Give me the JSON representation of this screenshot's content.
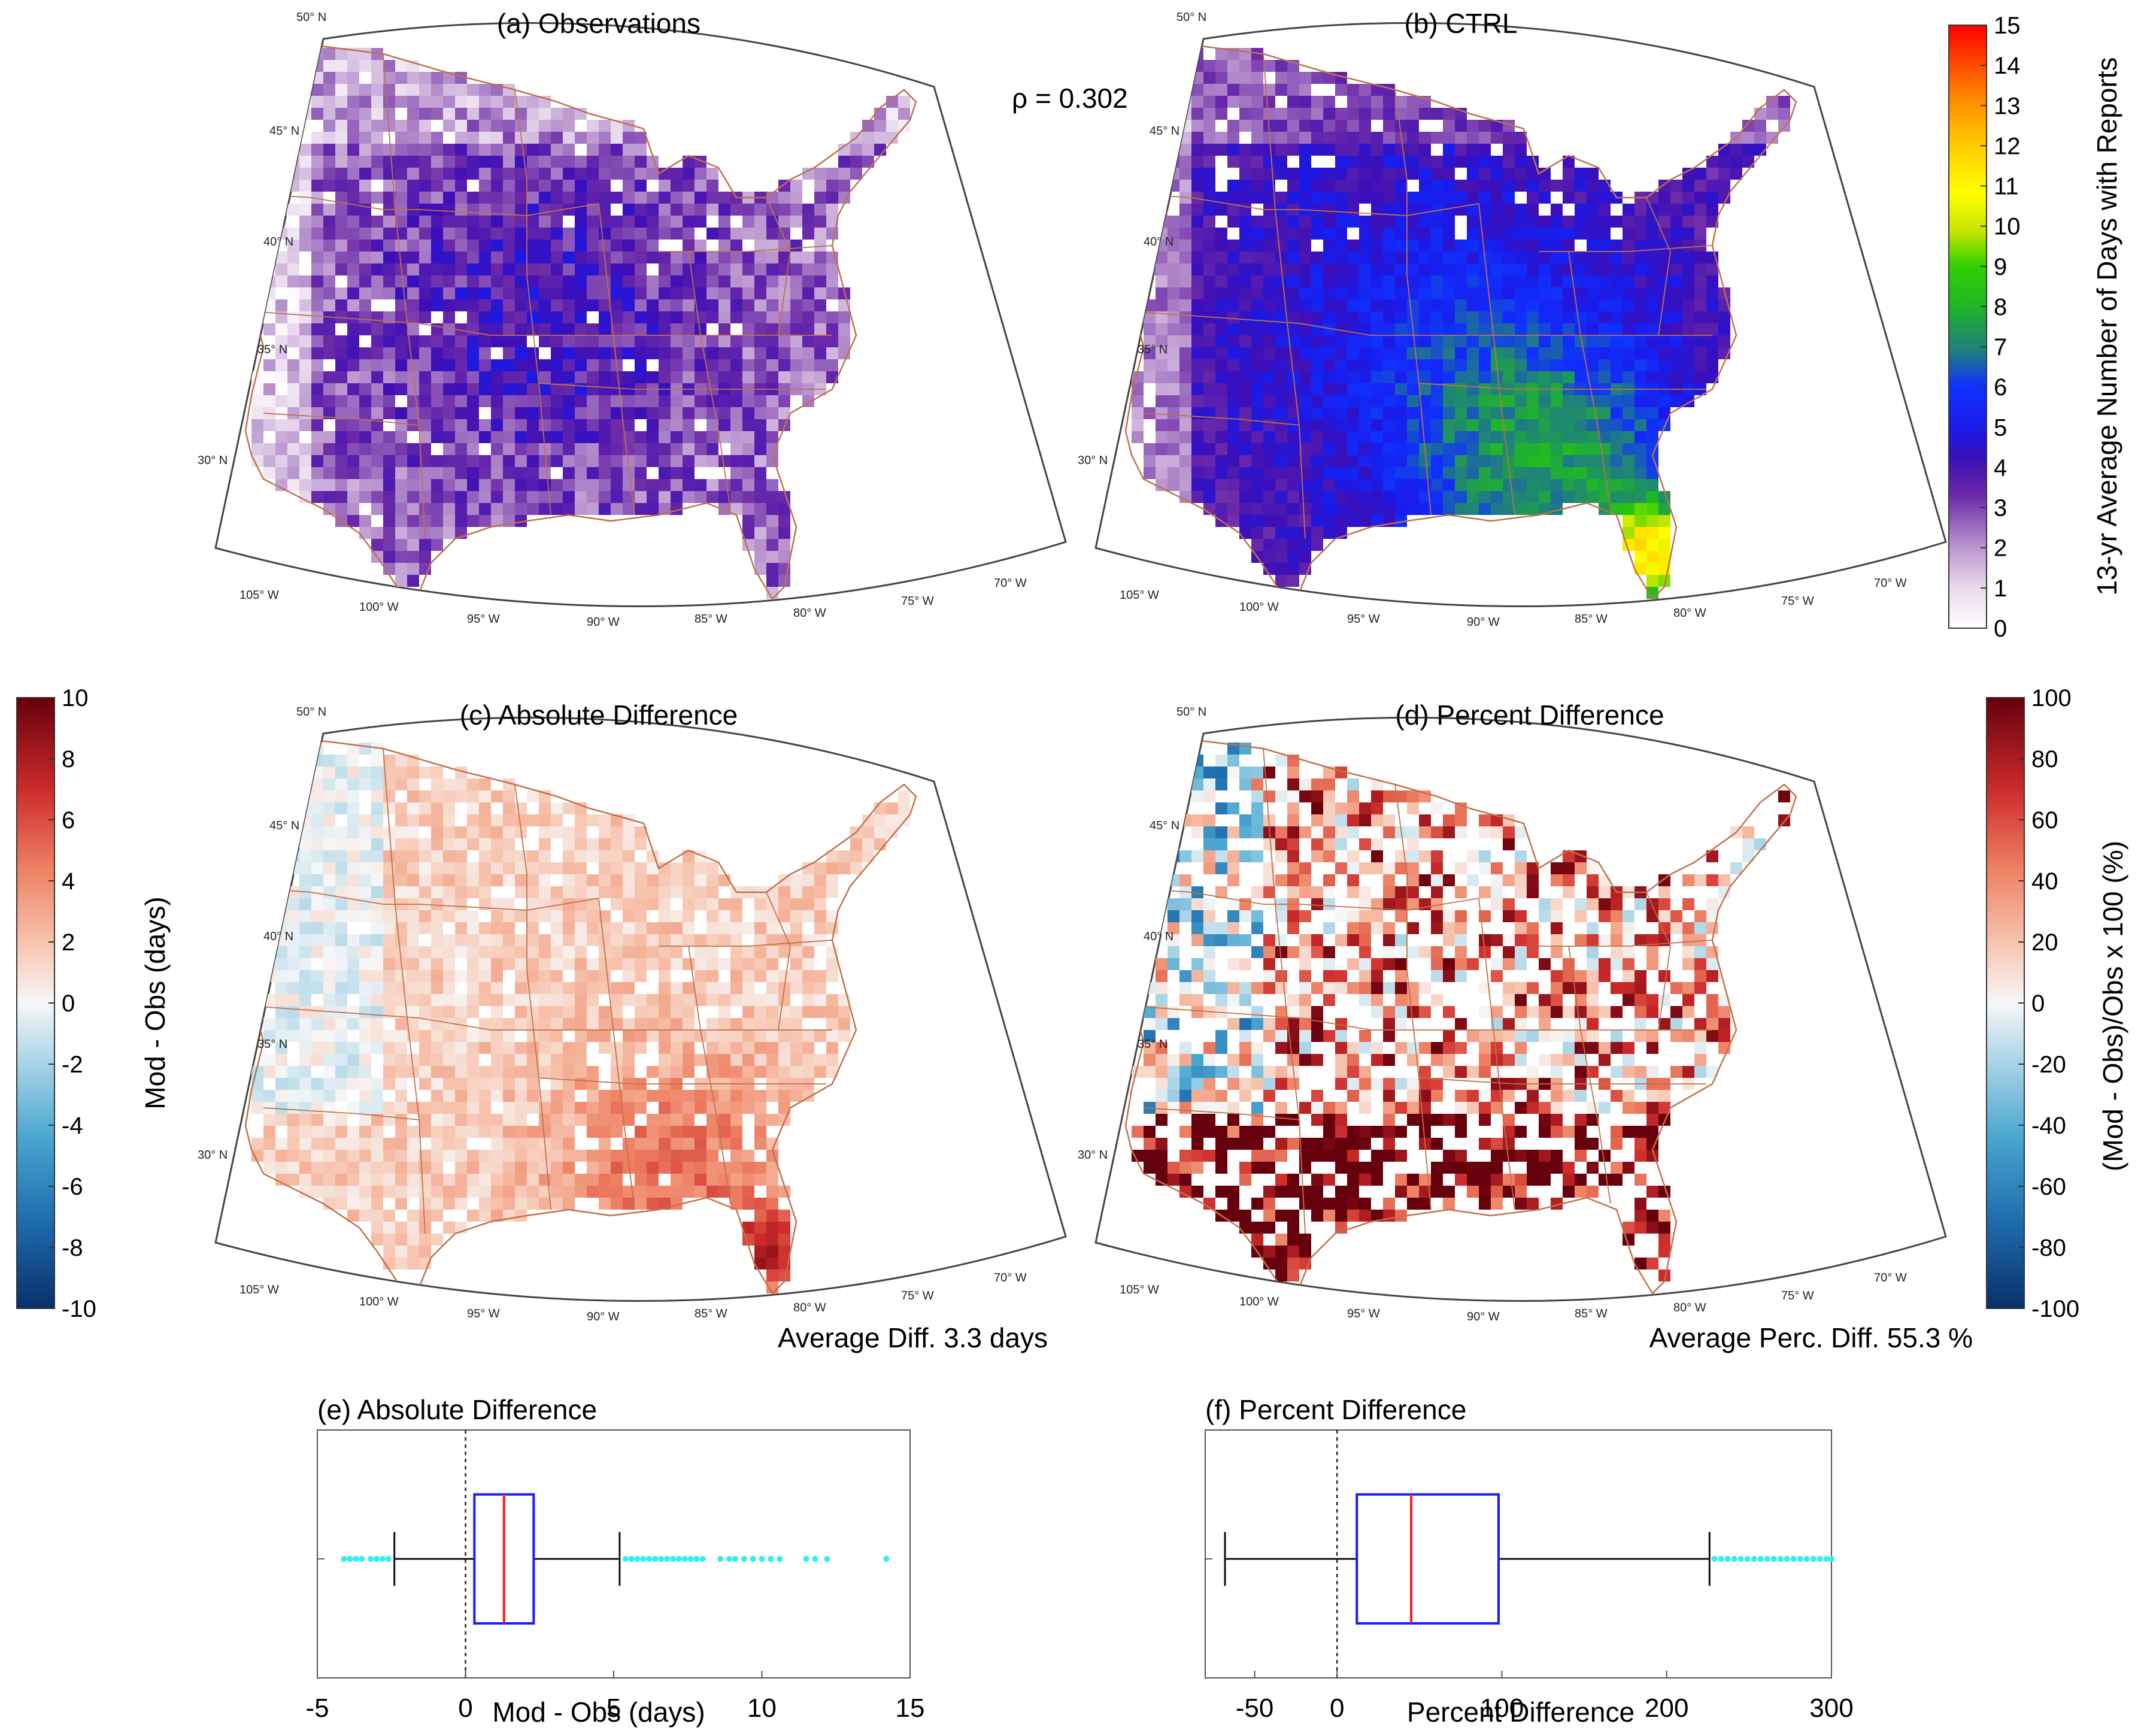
{
  "figure": {
    "rho_label": "ρ = 0.302",
    "avg_abs_label": "Average Diff. 3.3 days",
    "avg_perc_label": "Average Perc. Diff. 55.3 %"
  },
  "lat_labels": [
    "50° N",
    "45° N",
    "40° N",
    "35° N",
    "30° N"
  ],
  "lon_labels": [
    "105° W",
    "100° W",
    "95° W",
    "90° W",
    "85° W",
    "80° W",
    "75° W",
    "70° W"
  ],
  "colors": {
    "state_lines": "#c0714a",
    "map_frame": "#444444",
    "box_outline": "#1a1aff",
    "median": "#ff1a1a",
    "outlier": "#33f0f0"
  },
  "chart_data": [
    {
      "type": "heatmap",
      "title": "(a) Observations",
      "description_scale": "13-yr Average Number of Days with Reports",
      "value_range": [
        0,
        15
      ]
    },
    {
      "type": "heatmap",
      "title": "(b) CTRL",
      "value_range": [
        0,
        15
      ]
    },
    {
      "type": "heatmap",
      "title": "(c) Absolute Difference",
      "value_range": [
        -10,
        10
      ]
    },
    {
      "type": "heatmap",
      "title": "(d) Percent Difference",
      "value_range": [
        -100,
        100
      ]
    },
    {
      "type": "box",
      "title": "(e) Absolute Difference",
      "xlabel": "Mod - Obs (days)",
      "xlim": [
        -5,
        15
      ],
      "xticks": [
        "-5",
        "0",
        "5",
        "10",
        "15"
      ],
      "whisker_low": -2.4,
      "q1": 0.3,
      "median": 1.3,
      "q3": 2.3,
      "whisker_high": 5.2,
      "outliers": [
        -4.1,
        -3.9,
        -3.7,
        -3.5,
        -3.2,
        -3.0,
        -2.8,
        -2.6,
        5.4,
        5.6,
        5.8,
        6.0,
        6.2,
        6.4,
        6.6,
        6.8,
        7.0,
        7.2,
        7.4,
        7.6,
        7.8,
        8.0,
        8.6,
        8.9,
        9.1,
        9.4,
        9.7,
        10.0,
        10.3,
        10.6,
        11.5,
        11.8,
        12.2,
        14.2
      ]
    },
    {
      "type": "box",
      "title": "(f) Percent Difference",
      "xlabel": "Percent Difference",
      "xlim": [
        -80,
        300
      ],
      "xticks": [
        "-50",
        "0",
        "100",
        "200",
        "300"
      ],
      "xtick_values": [
        -50,
        0,
        100,
        200,
        300
      ],
      "whisker_low": -68,
      "q1": 12,
      "median": 45,
      "q3": 98,
      "whisker_high": 226,
      "outliers": [
        229,
        233,
        237,
        241,
        245,
        249,
        253,
        257,
        261,
        265,
        269,
        273,
        277,
        281,
        285,
        289,
        293,
        297,
        300
      ]
    },
    {
      "type": "colorbar",
      "label": "13-yr Average Number of Days with Reports",
      "ticks": [
        "15",
        "14",
        "13",
        "12",
        "11",
        "10",
        "9",
        "8",
        "7",
        "6",
        "5",
        "4",
        "3",
        "2",
        "1",
        "0"
      ]
    },
    {
      "type": "colorbar",
      "label": "Mod - Obs (days)",
      "ticks": [
        "10",
        "8",
        "6",
        "4",
        "2",
        "0",
        "-2",
        "-4",
        "-6",
        "-8",
        "-10"
      ]
    },
    {
      "type": "colorbar",
      "label": "(Mod - Obs)/Obs x 100 (%)",
      "ticks": [
        "100",
        "80",
        "60",
        "40",
        "20",
        "0",
        "-20",
        "-40",
        "-60",
        "-80",
        "-100"
      ]
    }
  ]
}
